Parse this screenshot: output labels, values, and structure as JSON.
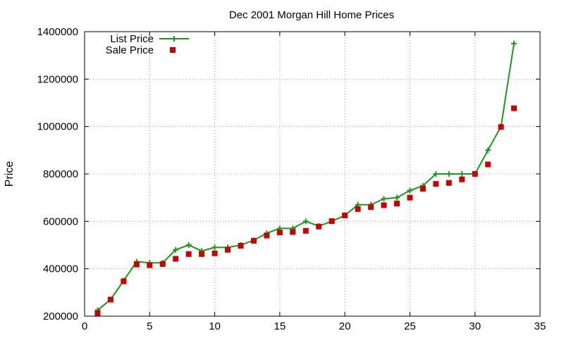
{
  "chart_data": {
    "type": "line",
    "title": "Dec 2001 Morgan Hill Home Prices",
    "xlabel": "",
    "ylabel": "Price",
    "xlim": [
      0,
      35
    ],
    "ylim": [
      200000,
      1400000
    ],
    "x_ticks": [
      "0",
      "5",
      "10",
      "15",
      "20",
      "25",
      "30",
      "35"
    ],
    "y_ticks": [
      "200000",
      "400000",
      "600000",
      "800000",
      "1000000",
      "1200000",
      "1400000"
    ],
    "grid": true,
    "legend_position": "top-left",
    "x": [
      1,
      2,
      3,
      4,
      5,
      6,
      7,
      8,
      9,
      10,
      11,
      12,
      13,
      14,
      15,
      16,
      17,
      18,
      19,
      20,
      21,
      22,
      23,
      24,
      25,
      26,
      27,
      28,
      29,
      30,
      31,
      32,
      33
    ],
    "series": [
      {
        "name": "List Price",
        "style": "lines+points",
        "color": "#1a9a1a",
        "values": [
          225000,
          270000,
          350000,
          430000,
          425000,
          425000,
          480000,
          500000,
          475000,
          490000,
          490000,
          500000,
          520000,
          550000,
          570000,
          570000,
          600000,
          580000,
          600000,
          625000,
          670000,
          670000,
          695000,
          700000,
          730000,
          750000,
          800000,
          800000,
          800000,
          800000,
          900000,
          1000000,
          1350000
        ]
      },
      {
        "name": "Sale Price",
        "style": "points",
        "color": "#cc0000",
        "values": [
          213000,
          270000,
          347000,
          418000,
          415000,
          420000,
          442000,
          462000,
          462000,
          465000,
          480000,
          497000,
          518000,
          540000,
          553000,
          555000,
          560000,
          578000,
          601000,
          625000,
          652000,
          660000,
          668000,
          675000,
          700000,
          737000,
          758000,
          762000,
          777000,
          800000,
          840000,
          998000,
          1077000
        ]
      }
    ]
  }
}
